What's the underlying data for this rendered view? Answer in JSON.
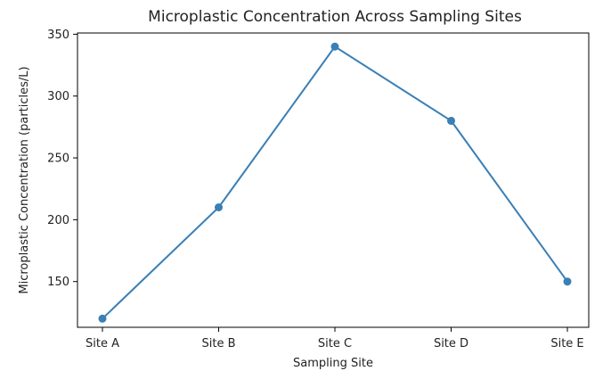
{
  "chart_data": {
    "type": "line",
    "title": "Microplastic Concentration Across Sampling Sites",
    "xlabel": "Sampling Site",
    "ylabel": "Microplastic Concentration (particles/L)",
    "categories": [
      "Site A",
      "Site B",
      "Site C",
      "Site D",
      "Site E"
    ],
    "series": [
      {
        "values": [
          120,
          210,
          340,
          280,
          150
        ],
        "color": "#3a7fb5",
        "marker": "circle"
      }
    ],
    "ylim": [
      113,
      351
    ],
    "yticks": [
      150,
      200,
      250,
      300,
      350
    ],
    "grid": false,
    "legend": "none"
  }
}
